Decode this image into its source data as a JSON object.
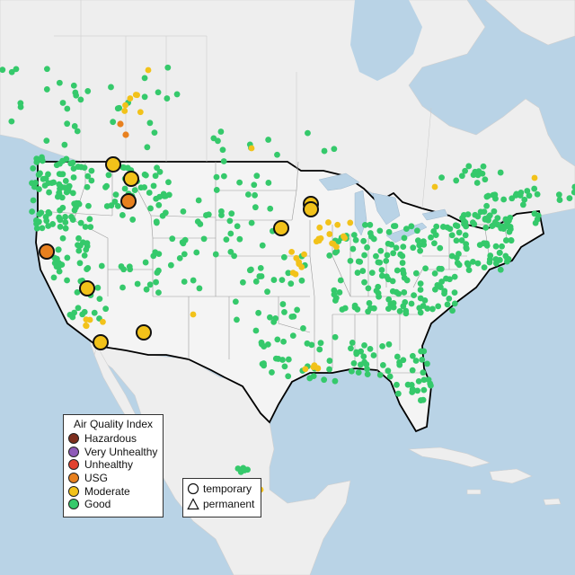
{
  "legend": {
    "title": "Air Quality Index",
    "categories": [
      {
        "label": "Hazardous",
        "color": "#7e2f1e"
      },
      {
        "label": "Very Unhealthy",
        "color": "#8e5ab8"
      },
      {
        "label": "Unhealthy",
        "color": "#e2412f"
      },
      {
        "label": "USG",
        "color": "#e8801e"
      },
      {
        "label": "Moderate",
        "color": "#f2c21a"
      },
      {
        "label": "Good",
        "color": "#35c96b"
      }
    ]
  },
  "shape_legend": {
    "temporary": "temporary",
    "permanent": "permanent"
  },
  "colors": {
    "water": "#b9d3e6",
    "land": "#efefef",
    "us_land": "#f4f4f4",
    "good": "#35c96b",
    "moderate": "#f2c21a",
    "usg": "#e8801e"
  }
}
